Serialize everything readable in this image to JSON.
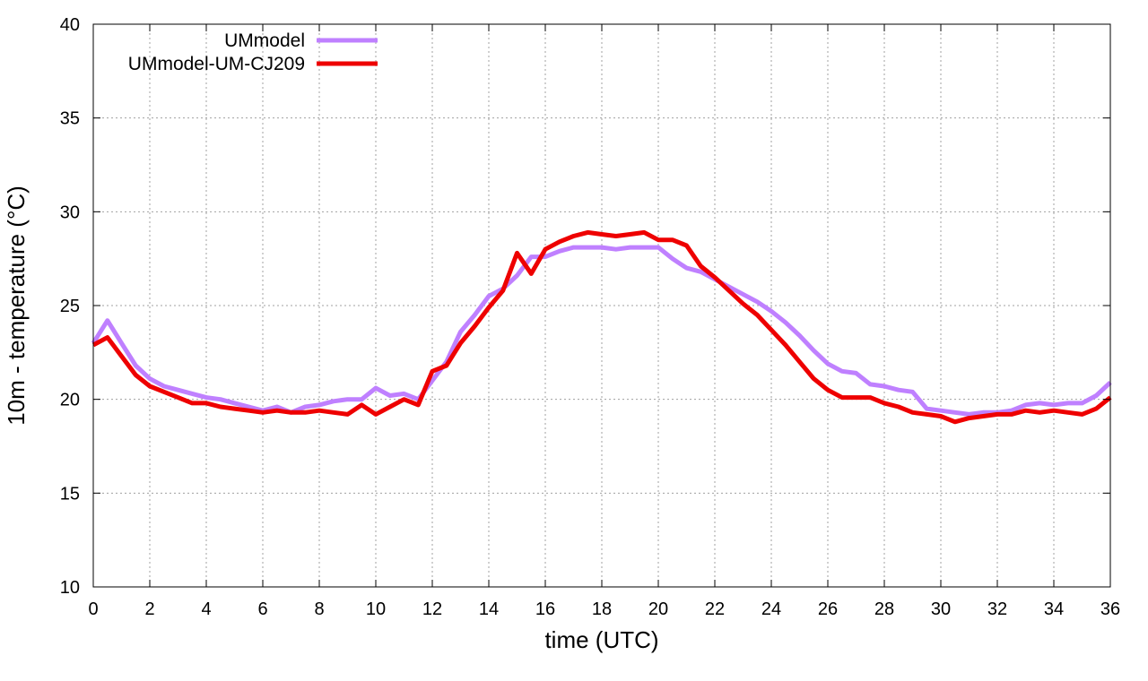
{
  "chart_data": {
    "type": "line",
    "title": "",
    "xlabel": "time (UTC)",
    "ylabel": "10m - temperature (°C)",
    "xlim": [
      0,
      36
    ],
    "ylim": [
      10,
      40
    ],
    "xticks": [
      0,
      2,
      4,
      6,
      8,
      10,
      12,
      14,
      16,
      18,
      20,
      22,
      24,
      26,
      28,
      30,
      32,
      34,
      36
    ],
    "yticks": [
      10,
      15,
      20,
      25,
      30,
      35,
      40
    ],
    "grid": true,
    "legend_position": "top-left",
    "series": [
      {
        "name": "UMmodel",
        "color": "#bf80ff",
        "x": [
          0,
          0.5,
          1,
          1.5,
          2,
          2.5,
          3,
          3.5,
          4,
          4.5,
          5,
          5.5,
          6,
          6.5,
          7,
          7.5,
          8,
          8.5,
          9,
          9.5,
          10,
          10.5,
          11,
          11.5,
          12,
          12.5,
          13,
          13.5,
          14,
          14.5,
          15,
          15.5,
          16,
          16.5,
          17,
          17.5,
          18,
          18.5,
          19,
          19.5,
          20,
          20.5,
          21,
          21.5,
          22,
          22.5,
          23,
          23.5,
          24,
          24.5,
          25,
          25.5,
          26,
          26.5,
          27,
          27.5,
          28,
          28.5,
          29,
          29.5,
          30,
          30.5,
          31,
          31.5,
          32,
          32.5,
          33,
          33.5,
          34,
          34.5,
          35,
          35.5,
          36
        ],
        "values": [
          23.0,
          24.2,
          23.0,
          21.8,
          21.1,
          20.7,
          20.5,
          20.3,
          20.1,
          20.0,
          19.8,
          19.6,
          19.4,
          19.6,
          19.3,
          19.6,
          19.7,
          19.9,
          20.0,
          20.0,
          20.6,
          20.2,
          20.3,
          20.0,
          21.0,
          22.0,
          23.6,
          24.5,
          25.5,
          25.9,
          26.6,
          27.6,
          27.6,
          27.9,
          28.1,
          28.1,
          28.1,
          28.0,
          28.1,
          28.1,
          28.1,
          27.5,
          27.0,
          26.8,
          26.4,
          26.0,
          25.6,
          25.2,
          24.7,
          24.1,
          23.4,
          22.6,
          21.9,
          21.5,
          21.4,
          20.8,
          20.7,
          20.5,
          20.4,
          19.5,
          19.4,
          19.3,
          19.2,
          19.3,
          19.3,
          19.4,
          19.7,
          19.8,
          19.7,
          19.8,
          19.8,
          20.2,
          20.9
        ]
      },
      {
        "name": "UMmodel-UM-CJ209",
        "color": "#ee0000",
        "x": [
          0,
          0.5,
          1,
          1.5,
          2,
          2.5,
          3,
          3.5,
          4,
          4.5,
          5,
          5.5,
          6,
          6.5,
          7,
          7.5,
          8,
          8.5,
          9,
          9.5,
          10,
          10.5,
          11,
          11.5,
          12,
          12.5,
          13,
          13.5,
          14,
          14.5,
          15,
          15.5,
          16,
          16.5,
          17,
          17.5,
          18,
          18.5,
          19,
          19.5,
          20,
          20.5,
          21,
          21.5,
          22,
          22.5,
          23,
          23.5,
          24,
          24.5,
          25,
          25.5,
          26,
          26.5,
          27,
          27.5,
          28,
          28.5,
          29,
          29.5,
          30,
          30.5,
          31,
          31.5,
          32,
          32.5,
          33,
          33.5,
          34,
          34.5,
          35,
          35.5,
          36
        ],
        "values": [
          22.9,
          23.3,
          22.3,
          21.3,
          20.7,
          20.4,
          20.1,
          19.8,
          19.8,
          19.6,
          19.5,
          19.4,
          19.3,
          19.4,
          19.3,
          19.3,
          19.4,
          19.3,
          19.2,
          19.7,
          19.2,
          19.6,
          20.0,
          19.7,
          21.5,
          21.8,
          23.0,
          23.9,
          24.9,
          25.8,
          27.8,
          26.7,
          28.0,
          28.4,
          28.7,
          28.9,
          28.8,
          28.7,
          28.8,
          28.9,
          28.5,
          28.5,
          28.2,
          27.1,
          26.5,
          25.8,
          25.1,
          24.5,
          23.7,
          22.9,
          22.0,
          21.1,
          20.5,
          20.1,
          20.1,
          20.1,
          19.8,
          19.6,
          19.3,
          19.2,
          19.1,
          18.8,
          19.0,
          19.1,
          19.2,
          19.2,
          19.4,
          19.3,
          19.4,
          19.3,
          19.2,
          19.5,
          20.1
        ]
      }
    ]
  }
}
